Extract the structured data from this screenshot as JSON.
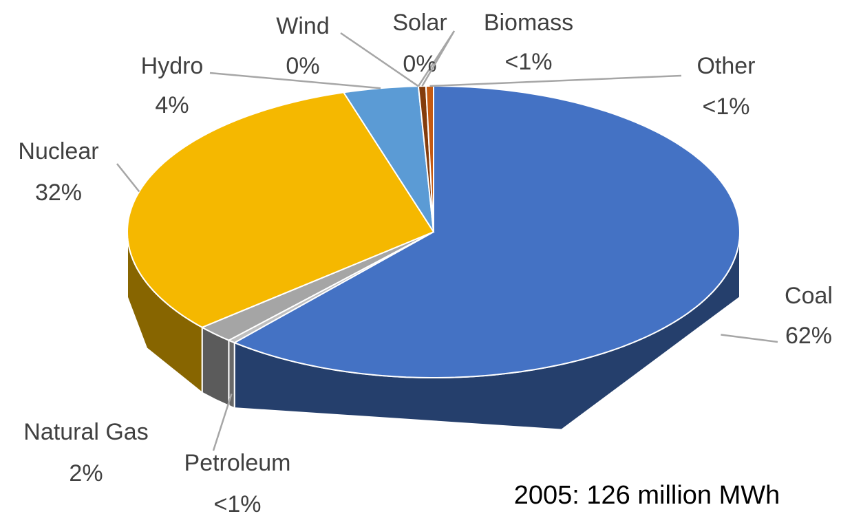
{
  "chart_data": {
    "type": "pie",
    "categories": [
      "Coal",
      "Petroleum",
      "Natural Gas",
      "Nuclear",
      "Hydro",
      "Wind",
      "Solar",
      "Biomass",
      "Other"
    ],
    "values": [
      62,
      0.4,
      2,
      32,
      4,
      0,
      0,
      0.4,
      0.4
    ],
    "value_labels": [
      "62%",
      "<1%",
      "2%",
      "32%",
      "4%",
      "0%",
      "0%",
      "<1%",
      "<1%"
    ],
    "colors": [
      "#4472c4",
      "#bfbfbf",
      "#a5a5a5",
      "#f5b800",
      "#5b9bd5",
      "#70ad47",
      "#ed7d31",
      "#843c0c",
      "#c55a11"
    ],
    "annotation": "2005:  126 million MWh"
  }
}
